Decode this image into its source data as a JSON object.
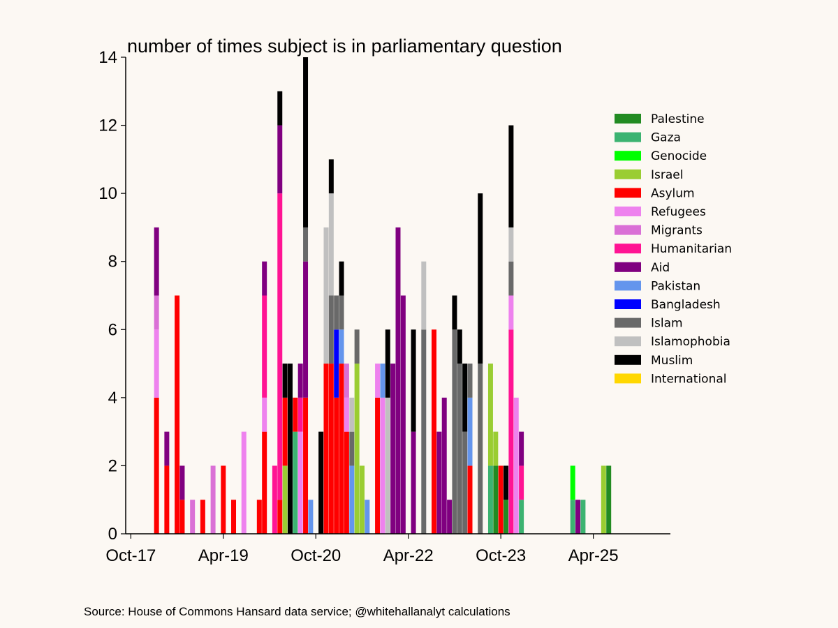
{
  "chart_data": {
    "type": "stacked-bar",
    "title": "number of times subject is in parliamentary question",
    "source": "Source: House of Commons Hansard data service; @whitehallanalyt calculations",
    "ylim": [
      0,
      14
    ],
    "yticks": [
      0,
      2,
      4,
      6,
      8,
      10,
      12,
      14
    ],
    "xticks": [
      {
        "label": "Oct-17",
        "t": 0
      },
      {
        "label": "Apr-19",
        "t": 18
      },
      {
        "label": "Oct-20",
        "t": 36
      },
      {
        "label": "Apr-22",
        "t": 54
      },
      {
        "label": "Oct-23",
        "t": 72
      },
      {
        "label": "Apr-25",
        "t": 90
      }
    ],
    "x_axis": {
      "unit": "months since Oct-17",
      "range": [
        -1,
        105
      ]
    },
    "legend_position": "upper-right",
    "series": [
      {
        "name": "Palestine",
        "color": "#228b22"
      },
      {
        "name": "Gaza",
        "color": "#3cb371"
      },
      {
        "name": "Genocide",
        "color": "#00ff00"
      },
      {
        "name": "Israel",
        "color": "#9acd32"
      },
      {
        "name": "Asylum",
        "color": "#ff0000"
      },
      {
        "name": "Refugees",
        "color": "#ee82ee"
      },
      {
        "name": "Migrants",
        "color": "#da70d6"
      },
      {
        "name": "Humanitarian",
        "color": "#ff1493"
      },
      {
        "name": "Aid",
        "color": "#800080"
      },
      {
        "name": "Pakistan",
        "color": "#6495ed"
      },
      {
        "name": "Bangladesh",
        "color": "#0000ff"
      },
      {
        "name": "Islam",
        "color": "#696969"
      },
      {
        "name": "Islamophobia",
        "color": "#c0c0c0"
      },
      {
        "name": "Muslim",
        "color": "#000000"
      },
      {
        "name": "International",
        "color": "#ffd700"
      }
    ],
    "bars": [
      {
        "t": 5,
        "stack": [
          [
            "Asylum",
            4
          ],
          [
            "Refugees",
            2
          ],
          [
            "Migrants",
            1
          ],
          [
            "Aid",
            2
          ]
        ]
      },
      {
        "t": 7,
        "stack": [
          [
            "Asylum",
            2
          ],
          [
            "Aid",
            1
          ]
        ]
      },
      {
        "t": 9,
        "stack": [
          [
            "Asylum",
            7
          ]
        ]
      },
      {
        "t": 10,
        "stack": [
          [
            "Asylum",
            1
          ],
          [
            "Aid",
            1
          ]
        ]
      },
      {
        "t": 12,
        "stack": [
          [
            "Migrants",
            1
          ]
        ]
      },
      {
        "t": 14,
        "stack": [
          [
            "Asylum",
            1
          ]
        ]
      },
      {
        "t": 16,
        "stack": [
          [
            "Migrants",
            2
          ]
        ]
      },
      {
        "t": 18,
        "stack": [
          [
            "Asylum",
            2
          ]
        ]
      },
      {
        "t": 20,
        "stack": [
          [
            "Asylum",
            1
          ]
        ]
      },
      {
        "t": 22,
        "stack": [
          [
            "Refugees",
            3
          ]
        ]
      },
      {
        "t": 25,
        "stack": [
          [
            "Asylum",
            1
          ]
        ]
      },
      {
        "t": 26,
        "stack": [
          [
            "Asylum",
            3
          ],
          [
            "Refugees",
            1
          ],
          [
            "Humanitarian",
            3
          ],
          [
            "Aid",
            1
          ]
        ]
      },
      {
        "t": 28,
        "stack": [
          [
            "Humanitarian",
            2
          ]
        ]
      },
      {
        "t": 29,
        "stack": [
          [
            "Asylum",
            1
          ],
          [
            "Humanitarian",
            9
          ],
          [
            "Aid",
            2
          ],
          [
            "Muslim",
            1
          ]
        ]
      },
      {
        "t": 30,
        "stack": [
          [
            "Israel",
            2
          ],
          [
            "Asylum",
            2
          ],
          [
            "Muslim",
            1
          ]
        ]
      },
      {
        "t": 31,
        "stack": [
          [
            "Muslim",
            5
          ]
        ]
      },
      {
        "t": 32,
        "stack": [
          [
            "Gaza",
            3
          ],
          [
            "Asylum",
            1
          ]
        ]
      },
      {
        "t": 33,
        "stack": [
          [
            "Refugees",
            3
          ],
          [
            "Humanitarian",
            1
          ],
          [
            "Aid",
            1
          ]
        ]
      },
      {
        "t": 34,
        "stack": [
          [
            "Asylum",
            4
          ],
          [
            "Aid",
            4
          ],
          [
            "Islam",
            1
          ],
          [
            "Muslim",
            5
          ]
        ]
      },
      {
        "t": 35,
        "stack": [
          [
            "Pakistan",
            1
          ]
        ]
      },
      {
        "t": 37,
        "stack": [
          [
            "Muslim",
            3
          ]
        ]
      },
      {
        "t": 38,
        "stack": [
          [
            "Asylum",
            5
          ],
          [
            "Islamophobia",
            4
          ]
        ]
      },
      {
        "t": 39,
        "stack": [
          [
            "Asylum",
            5
          ],
          [
            "Islam",
            2
          ],
          [
            "Islamophobia",
            3
          ],
          [
            "Muslim",
            1
          ]
        ]
      },
      {
        "t": 40,
        "stack": [
          [
            "Asylum",
            4
          ],
          [
            "Bangladesh",
            2
          ],
          [
            "Islam",
            1
          ]
        ]
      },
      {
        "t": 41,
        "stack": [
          [
            "Asylum",
            5
          ],
          [
            "Pakistan",
            1
          ],
          [
            "Islam",
            1
          ],
          [
            "Muslim",
            1
          ]
        ]
      },
      {
        "t": 42,
        "stack": [
          [
            "Asylum",
            3
          ],
          [
            "Refugees",
            1
          ],
          [
            "Migrants",
            1
          ]
        ]
      },
      {
        "t": 43,
        "stack": [
          [
            "Pakistan",
            2
          ],
          [
            "Islam",
            1
          ],
          [
            "Islamophobia",
            1
          ]
        ]
      },
      {
        "t": 44,
        "stack": [
          [
            "Israel",
            5
          ],
          [
            "Islam",
            1
          ]
        ]
      },
      {
        "t": 45,
        "stack": [
          [
            "Israel",
            2
          ]
        ]
      },
      {
        "t": 46,
        "stack": [
          [
            "Pakistan",
            1
          ]
        ]
      },
      {
        "t": 48,
        "stack": [
          [
            "Asylum",
            4
          ],
          [
            "Refugees",
            1
          ]
        ]
      },
      {
        "t": 49,
        "stack": [
          [
            "Refugees",
            4
          ],
          [
            "Pakistan",
            1
          ]
        ]
      },
      {
        "t": 50,
        "stack": [
          [
            "Islamophobia",
            4
          ],
          [
            "Muslim",
            2
          ]
        ]
      },
      {
        "t": 51,
        "stack": [
          [
            "Aid",
            5
          ]
        ]
      },
      {
        "t": 52,
        "stack": [
          [
            "Aid",
            9
          ]
        ]
      },
      {
        "t": 53,
        "stack": [
          [
            "Aid",
            7
          ]
        ]
      },
      {
        "t": 55,
        "stack": [
          [
            "Aid",
            3
          ],
          [
            "Muslim",
            3
          ]
        ]
      },
      {
        "t": 57,
        "stack": [
          [
            "Islam",
            6
          ],
          [
            "Islamophobia",
            2
          ]
        ]
      },
      {
        "t": 59,
        "stack": [
          [
            "Asylum",
            6
          ]
        ]
      },
      {
        "t": 60,
        "stack": [
          [
            "Aid",
            3
          ]
        ]
      },
      {
        "t": 61,
        "stack": [
          [
            "Aid",
            4
          ]
        ]
      },
      {
        "t": 62,
        "stack": [
          [
            "Aid",
            1
          ]
        ]
      },
      {
        "t": 63,
        "stack": [
          [
            "Islam",
            6
          ],
          [
            "Muslim",
            1
          ]
        ]
      },
      {
        "t": 64,
        "stack": [
          [
            "Islam",
            5
          ],
          [
            "Muslim",
            1
          ]
        ]
      },
      {
        "t": 65,
        "stack": [
          [
            "Islam",
            3
          ],
          [
            "Muslim",
            2
          ]
        ]
      },
      {
        "t": 66,
        "stack": [
          [
            "Asylum",
            2
          ],
          [
            "Pakistan",
            2
          ],
          [
            "Islam",
            1
          ]
        ]
      },
      {
        "t": 68,
        "stack": [
          [
            "Islam",
            5
          ],
          [
            "Muslim",
            5
          ]
        ]
      },
      {
        "t": 70,
        "stack": [
          [
            "Gaza",
            2
          ],
          [
            "Israel",
            3
          ]
        ]
      },
      {
        "t": 71,
        "stack": [
          [
            "Palestine",
            2
          ],
          [
            "Israel",
            1
          ]
        ]
      },
      {
        "t": 72,
        "stack": [
          [
            "Asylum",
            2
          ]
        ]
      },
      {
        "t": 73,
        "stack": [
          [
            "Palestine",
            1
          ],
          [
            "Muslim",
            1
          ]
        ]
      },
      {
        "t": 74,
        "stack": [
          [
            "Humanitarian",
            6
          ],
          [
            "Refugees",
            1
          ],
          [
            "Islam",
            1
          ],
          [
            "Islamophobia",
            1
          ],
          [
            "Muslim",
            3
          ]
        ]
      },
      {
        "t": 75,
        "stack": [
          [
            "Refugees",
            4
          ]
        ]
      },
      {
        "t": 76,
        "stack": [
          [
            "Gaza",
            1
          ],
          [
            "Humanitarian",
            1
          ],
          [
            "Aid",
            1
          ]
        ]
      },
      {
        "t": 86,
        "stack": [
          [
            "Gaza",
            1
          ],
          [
            "Genocide",
            1
          ]
        ]
      },
      {
        "t": 87,
        "stack": [
          [
            "Aid",
            1
          ]
        ]
      },
      {
        "t": 88,
        "stack": [
          [
            "Gaza",
            1
          ]
        ]
      },
      {
        "t": 92,
        "stack": [
          [
            "Israel",
            2
          ]
        ]
      },
      {
        "t": 93,
        "stack": [
          [
            "Palestine",
            2
          ]
        ]
      }
    ]
  }
}
